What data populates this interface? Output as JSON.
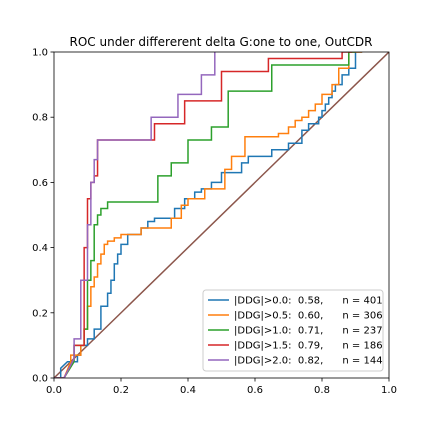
{
  "chart_data": {
    "type": "line",
    "title": "ROC under differerent delta G:one to one, OutCDR",
    "xlabel": "",
    "ylabel": "",
    "xlim": [
      0,
      1
    ],
    "ylim": [
      0,
      1
    ],
    "xticks": [
      "0.0",
      "0.2",
      "0.4",
      "0.6",
      "0.8",
      "1.0"
    ],
    "yticks": [
      "0.0",
      "0.2",
      "0.4",
      "0.6",
      "0.8",
      "1.0"
    ],
    "grid": false,
    "legend_position": "lower-right",
    "diagonal": {
      "x": [
        0,
        1
      ],
      "y": [
        0,
        1
      ],
      "color": "#8c564b"
    },
    "series": [
      {
        "name": "|DDG|>0.0:",
        "legend_label": "|DDG|>0.0:  0.58,      n = 401",
        "auc": "0.58",
        "n": "n = 401",
        "color": "#1f77b4",
        "x": [
          0.0,
          0.02,
          0.02,
          0.04,
          0.05,
          0.07,
          0.07,
          0.08,
          0.08,
          0.1,
          0.1,
          0.12,
          0.12,
          0.14,
          0.14,
          0.16,
          0.16,
          0.17,
          0.17,
          0.18,
          0.18,
          0.19,
          0.19,
          0.2,
          0.2,
          0.22,
          0.22,
          0.26,
          0.26,
          0.28,
          0.28,
          0.3,
          0.3,
          0.36,
          0.36,
          0.39,
          0.39,
          0.42,
          0.42,
          0.44,
          0.44,
          0.47,
          0.47,
          0.5,
          0.5,
          0.56,
          0.56,
          0.58,
          0.58,
          0.65,
          0.65,
          0.7,
          0.7,
          0.74,
          0.74,
          0.76,
          0.76,
          0.79,
          0.79,
          0.8,
          0.8,
          0.81,
          0.81,
          0.82,
          0.82,
          0.83,
          0.83,
          0.84,
          0.84,
          0.86,
          0.86,
          0.88,
          0.88,
          0.9,
          0.9,
          0.92
        ],
        "y": [
          0.0,
          0.0,
          0.03,
          0.05,
          0.05,
          0.05,
          0.07,
          0.07,
          0.1,
          0.1,
          0.12,
          0.12,
          0.15,
          0.15,
          0.22,
          0.22,
          0.26,
          0.26,
          0.3,
          0.3,
          0.35,
          0.35,
          0.38,
          0.38,
          0.41,
          0.41,
          0.44,
          0.44,
          0.46,
          0.46,
          0.48,
          0.48,
          0.49,
          0.49,
          0.52,
          0.52,
          0.55,
          0.55,
          0.57,
          0.57,
          0.58,
          0.58,
          0.6,
          0.6,
          0.63,
          0.63,
          0.66,
          0.66,
          0.68,
          0.68,
          0.7,
          0.7,
          0.72,
          0.72,
          0.76,
          0.76,
          0.78,
          0.78,
          0.8,
          0.8,
          0.82,
          0.82,
          0.84,
          0.84,
          0.86,
          0.86,
          0.88,
          0.88,
          0.9,
          0.9,
          0.93,
          0.93,
          0.95,
          0.95,
          1.0,
          1.0
        ]
      },
      {
        "name": "|DDG|>0.5:",
        "legend_label": "|DDG|>0.5:  0.60,      n = 306",
        "auc": "0.60",
        "n": "n = 306",
        "color": "#ff7f0e",
        "x": [
          0.0,
          0.03,
          0.05,
          0.05,
          0.08,
          0.08,
          0.09,
          0.09,
          0.1,
          0.1,
          0.11,
          0.11,
          0.12,
          0.12,
          0.13,
          0.13,
          0.14,
          0.14,
          0.15,
          0.15,
          0.16,
          0.16,
          0.18,
          0.18,
          0.2,
          0.2,
          0.26,
          0.26,
          0.35,
          0.35,
          0.38,
          0.38,
          0.4,
          0.4,
          0.45,
          0.45,
          0.51,
          0.51,
          0.53,
          0.53,
          0.57,
          0.57,
          0.67,
          0.67,
          0.7,
          0.7,
          0.72,
          0.72,
          0.74,
          0.74,
          0.76,
          0.76,
          0.78,
          0.78,
          0.8,
          0.8,
          0.83,
          0.83,
          0.85,
          0.85,
          0.88,
          0.88,
          0.92
        ],
        "y": [
          0.0,
          0.0,
          0.05,
          0.07,
          0.07,
          0.1,
          0.1,
          0.15,
          0.15,
          0.22,
          0.22,
          0.28,
          0.28,
          0.31,
          0.31,
          0.35,
          0.35,
          0.38,
          0.38,
          0.41,
          0.41,
          0.42,
          0.42,
          0.43,
          0.43,
          0.44,
          0.44,
          0.46,
          0.46,
          0.49,
          0.49,
          0.53,
          0.53,
          0.55,
          0.55,
          0.58,
          0.58,
          0.64,
          0.64,
          0.68,
          0.68,
          0.74,
          0.74,
          0.75,
          0.75,
          0.77,
          0.77,
          0.79,
          0.79,
          0.8,
          0.8,
          0.82,
          0.82,
          0.84,
          0.84,
          0.87,
          0.87,
          0.9,
          0.9,
          0.95,
          0.95,
          1.0,
          1.0
        ]
      },
      {
        "name": "|DDG|>1.0:",
        "legend_label": "|DDG|>1.0:  0.71,      n = 237",
        "auc": "0.71",
        "n": "n = 237",
        "color": "#2ca02c",
        "x": [
          0.0,
          0.03,
          0.06,
          0.06,
          0.09,
          0.09,
          0.1,
          0.1,
          0.11,
          0.11,
          0.12,
          0.12,
          0.13,
          0.13,
          0.14,
          0.14,
          0.16,
          0.16,
          0.31,
          0.31,
          0.35,
          0.35,
          0.4,
          0.4,
          0.47,
          0.47,
          0.52,
          0.52,
          0.65,
          0.65,
          0.88,
          0.88,
          0.9
        ],
        "y": [
          0.0,
          0.0,
          0.05,
          0.1,
          0.1,
          0.15,
          0.15,
          0.3,
          0.3,
          0.36,
          0.36,
          0.47,
          0.47,
          0.5,
          0.5,
          0.52,
          0.52,
          0.54,
          0.54,
          0.62,
          0.62,
          0.66,
          0.66,
          0.73,
          0.73,
          0.77,
          0.77,
          0.88,
          0.88,
          0.96,
          0.96,
          1.0,
          1.0
        ]
      },
      {
        "name": "|DDG|>1.5:",
        "legend_label": "|DDG|>1.5:  0.79,      n = 186",
        "auc": "0.79",
        "n": "n = 186",
        "color": "#d62728",
        "x": [
          0.0,
          0.03,
          0.06,
          0.06,
          0.09,
          0.09,
          0.1,
          0.1,
          0.11,
          0.11,
          0.12,
          0.12,
          0.13,
          0.13,
          0.3,
          0.3,
          0.39,
          0.39,
          0.5,
          0.5,
          0.64,
          0.64,
          0.86,
          0.86,
          0.89
        ],
        "y": [
          0.0,
          0.0,
          0.06,
          0.1,
          0.1,
          0.4,
          0.4,
          0.55,
          0.55,
          0.6,
          0.6,
          0.62,
          0.62,
          0.73,
          0.73,
          0.78,
          0.78,
          0.85,
          0.85,
          0.94,
          0.94,
          0.98,
          0.98,
          1.0,
          1.0
        ]
      },
      {
        "name": "|DDG|>2.0:",
        "legend_label": "|DDG|>2.0:  0.82,      n = 144",
        "auc": "0.82",
        "n": "n = 144",
        "color": "#9467bd",
        "x": [
          0.0,
          0.03,
          0.06,
          0.06,
          0.08,
          0.08,
          0.1,
          0.1,
          0.11,
          0.11,
          0.12,
          0.12,
          0.13,
          0.13,
          0.29,
          0.29,
          0.37,
          0.37,
          0.44,
          0.44,
          0.48,
          0.48
        ],
        "y": [
          0.0,
          0.0,
          0.06,
          0.12,
          0.12,
          0.3,
          0.3,
          0.47,
          0.47,
          0.6,
          0.6,
          0.67,
          0.67,
          0.73,
          0.73,
          0.8,
          0.8,
          0.87,
          0.87,
          0.93,
          0.93,
          1.0
        ]
      }
    ]
  }
}
